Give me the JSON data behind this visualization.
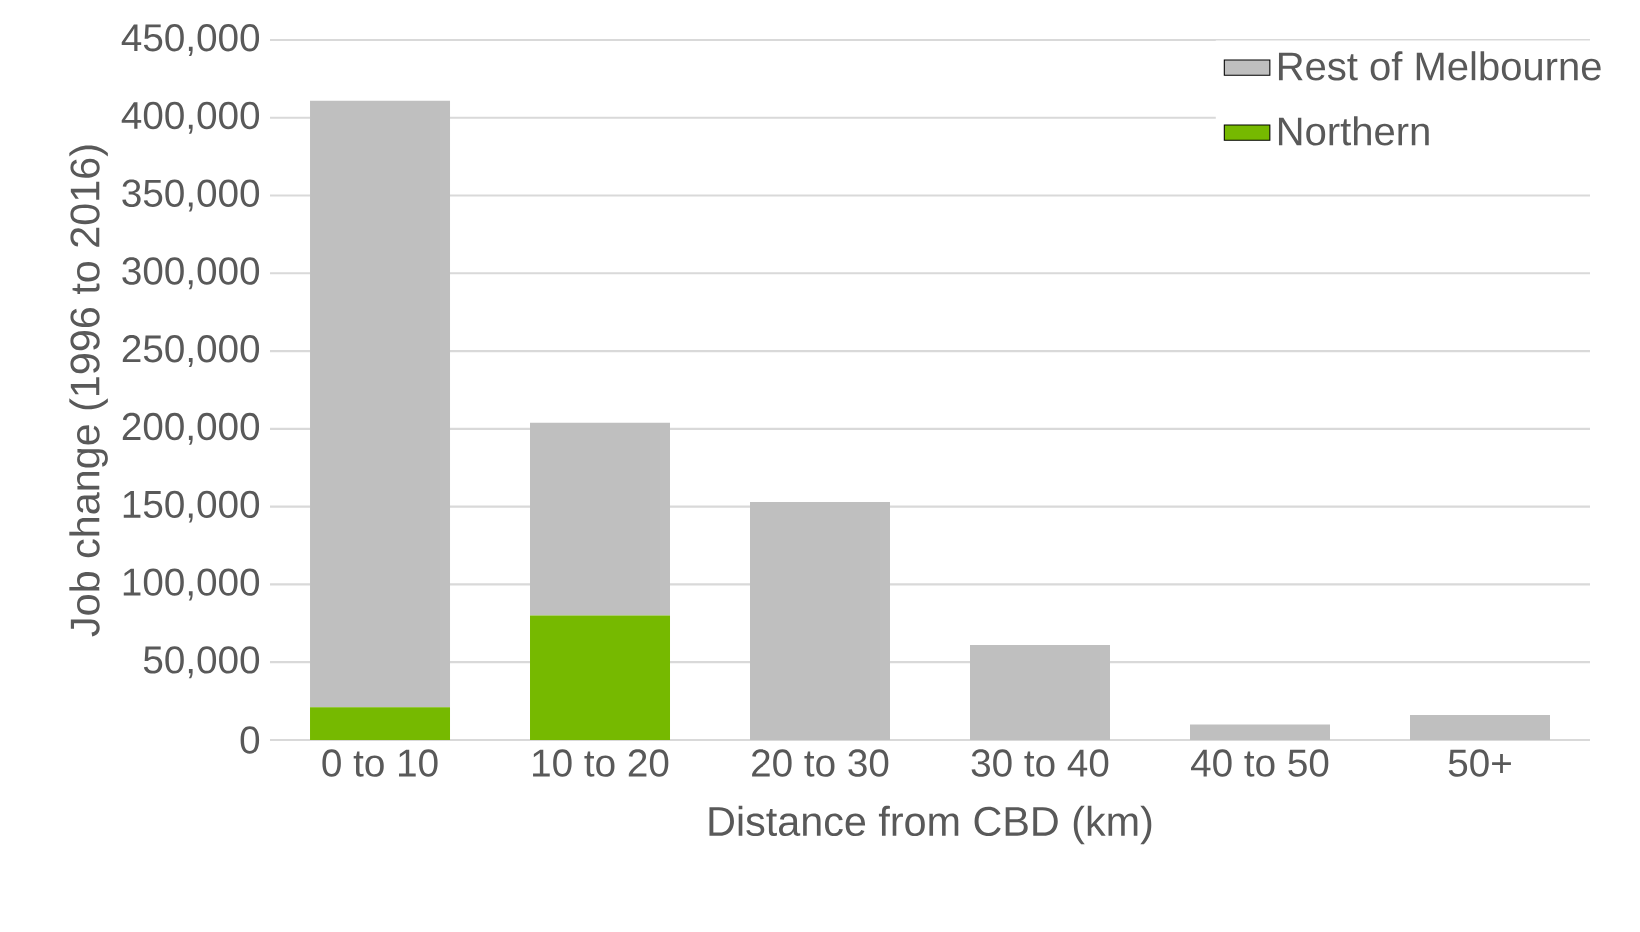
{
  "chart_data": {
    "type": "bar",
    "stacked": true,
    "xlabel": "Distance from CBD (km)",
    "ylabel": "Job change (1996 to 2016)",
    "categories": [
      "0 to 10",
      "10 to 20",
      "20 to 30",
      "30 to 40",
      "40 to 50",
      "50+"
    ],
    "series": [
      {
        "name": "Northern",
        "color": "#76b900",
        "values": [
          21000,
          80000,
          0,
          0,
          0,
          0
        ]
      },
      {
        "name": "Rest of Melbourne",
        "color": "#bfbfbf",
        "values": [
          390000,
          124000,
          153000,
          61000,
          10000,
          16000
        ]
      }
    ],
    "ylim": [
      0,
      450000
    ],
    "yticks": [
      {
        "value": 0,
        "label": "0"
      },
      {
        "value": 50000,
        "label": "50,000"
      },
      {
        "value": 100000,
        "label": "100,000"
      },
      {
        "value": 150000,
        "label": "150,000"
      },
      {
        "value": 200000,
        "label": "200,000"
      },
      {
        "value": 250000,
        "label": "250,000"
      },
      {
        "value": 300000,
        "label": "300,000"
      },
      {
        "value": 350000,
        "label": "350,000"
      },
      {
        "value": 400000,
        "label": "400,000"
      },
      {
        "value": 450000,
        "label": "450,000"
      }
    ],
    "grid": "y",
    "legend": "top right"
  }
}
